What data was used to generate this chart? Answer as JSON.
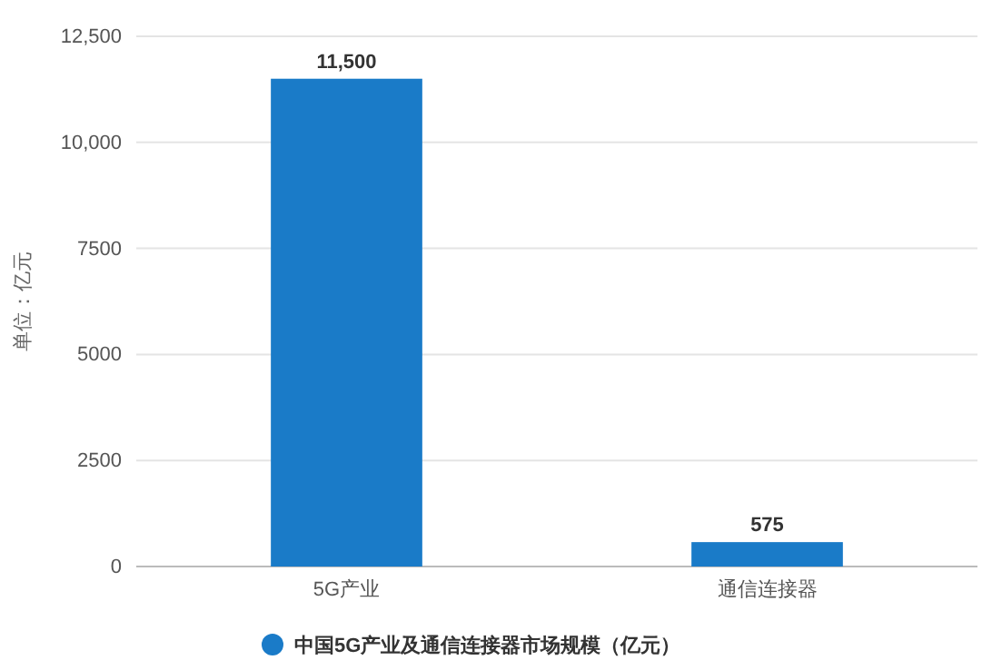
{
  "chart_data": {
    "type": "bar",
    "ylabel": "单位：亿元",
    "categories": [
      "5G产业",
      "通信连接器"
    ],
    "series": [
      {
        "name": "中国5G产业及通信连接器市场规模（亿元）",
        "color": "#1a7bc8",
        "values": [
          11500,
          575
        ],
        "value_labels": [
          "11,500",
          "575"
        ]
      }
    ],
    "ylim": [
      0,
      12500
    ],
    "yticks": [
      0,
      2500,
      5000,
      7500,
      {
        "value": 10000,
        "label": "10,000"
      },
      {
        "value": 12500,
        "label": "12,500"
      }
    ],
    "grid": "y",
    "legend": "bottom"
  }
}
